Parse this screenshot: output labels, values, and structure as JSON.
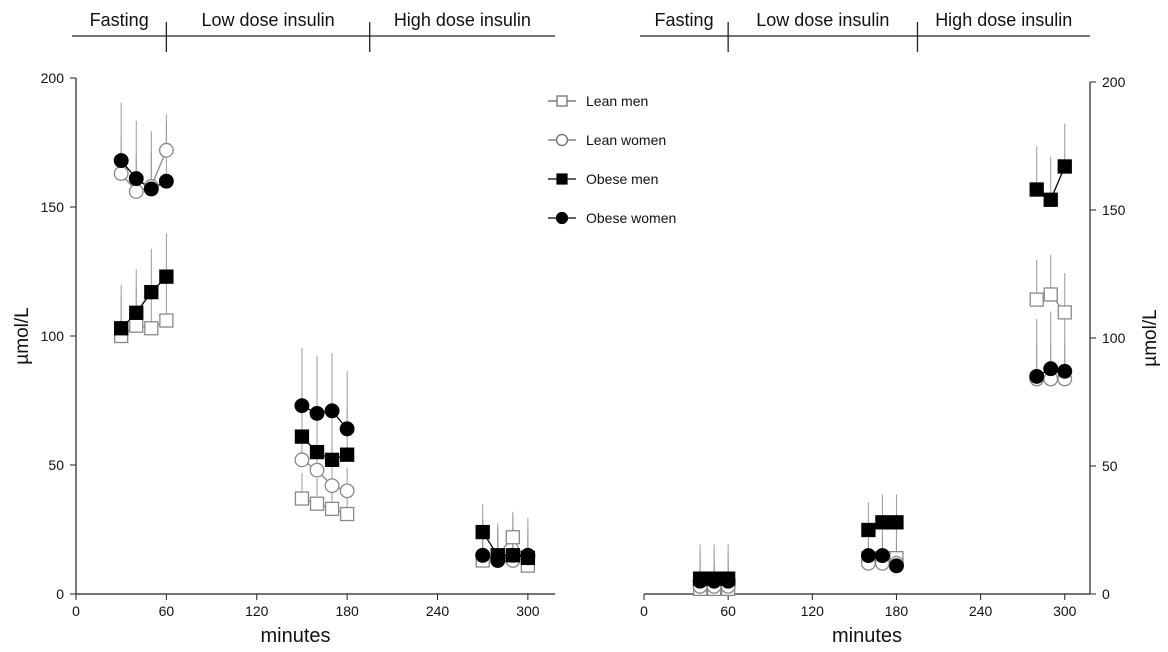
{
  "chart_data": [
    {
      "type": "scatter",
      "panel": "left",
      "phases": [
        "Fasting",
        "Low dose insulin",
        "High dose insulin"
      ],
      "xlabel": "minutes",
      "ylabel": "µmol/L",
      "xticks": [
        0,
        60,
        120,
        180,
        240,
        300
      ],
      "yticks": [
        0,
        50,
        100,
        150,
        200
      ],
      "xlim": [
        0,
        318
      ],
      "ylim": [
        0,
        200
      ],
      "legend": {
        "position": "top-right"
      },
      "series": [
        {
          "name": "Lean men",
          "marker": "open-square",
          "segments": [
            [
              [
                30,
                100
              ],
              [
                40,
                104
              ],
              [
                50,
                103
              ],
              [
                60,
                106
              ]
            ],
            [
              [
                150,
                37
              ],
              [
                160,
                35
              ],
              [
                170,
                33
              ],
              [
                180,
                31
              ]
            ],
            [
              [
                270,
                13
              ],
              [
                280,
                15
              ],
              [
                290,
                22
              ],
              [
                300,
                11
              ]
            ]
          ]
        },
        {
          "name": "Lean women",
          "marker": "open-circle",
          "segments": [
            [
              [
                30,
                163
              ],
              [
                40,
                156
              ],
              [
                50,
                158
              ],
              [
                60,
                172
              ]
            ],
            [
              [
                150,
                52
              ],
              [
                160,
                48
              ],
              [
                170,
                42
              ],
              [
                180,
                40
              ]
            ],
            [
              [
                270,
                15
              ],
              [
                280,
                13
              ],
              [
                290,
                13
              ],
              [
                300,
                14
              ]
            ]
          ]
        },
        {
          "name": "Obese men",
          "marker": "filled-square",
          "segments": [
            [
              [
                30,
                103
              ],
              [
                40,
                109
              ],
              [
                50,
                117
              ],
              [
                60,
                123
              ]
            ],
            [
              [
                150,
                61
              ],
              [
                160,
                55
              ],
              [
                170,
                52
              ],
              [
                180,
                54
              ]
            ],
            [
              [
                270,
                24
              ],
              [
                280,
                15
              ],
              [
                290,
                15
              ],
              [
                300,
                14
              ]
            ]
          ]
        },
        {
          "name": "Obese women",
          "marker": "filled-circle",
          "segments": [
            [
              [
                30,
                168
              ],
              [
                40,
                161
              ],
              [
                50,
                157
              ],
              [
                60,
                160
              ]
            ],
            [
              [
                150,
                73
              ],
              [
                160,
                70
              ],
              [
                170,
                71
              ],
              [
                180,
                64
              ]
            ],
            [
              [
                270,
                15
              ],
              [
                280,
                13
              ],
              [
                290,
                15
              ],
              [
                300,
                15
              ]
            ]
          ]
        }
      ]
    },
    {
      "type": "scatter",
      "panel": "right",
      "phases": [
        "Fasting",
        "Low dose insulin",
        "High dose insulin"
      ],
      "xlabel": "minutes",
      "ylabel": "µmol/L",
      "xticks": [
        0,
        60,
        120,
        180,
        240,
        300
      ],
      "yticks": [
        0,
        50,
        100,
        150,
        200
      ],
      "xlim": [
        0,
        318
      ],
      "ylim": [
        0,
        200
      ],
      "series": [
        {
          "name": "Lean men",
          "marker": "open-square",
          "segments": [
            [
              [
                40,
                2
              ],
              [
                50,
                2
              ],
              [
                60,
                2
              ]
            ],
            [
              [
                160,
                14
              ],
              [
                170,
                14
              ],
              [
                180,
                14
              ]
            ],
            [
              [
                280,
                115
              ],
              [
                290,
                117
              ],
              [
                300,
                110
              ]
            ]
          ]
        },
        {
          "name": "Lean women",
          "marker": "open-circle",
          "segments": [
            [
              [
                40,
                3
              ],
              [
                50,
                3
              ],
              [
                60,
                3
              ]
            ],
            [
              [
                160,
                12
              ],
              [
                170,
                12
              ],
              [
                180,
                12
              ]
            ],
            [
              [
                280,
                84
              ],
              [
                290,
                84
              ],
              [
                300,
                84
              ]
            ]
          ]
        },
        {
          "name": "Obese men",
          "marker": "filled-square",
          "segments": [
            [
              [
                40,
                6
              ],
              [
                50,
                6
              ],
              [
                60,
                6
              ]
            ],
            [
              [
                160,
                25
              ],
              [
                170,
                28
              ],
              [
                180,
                28
              ]
            ],
            [
              [
                280,
                158
              ],
              [
                290,
                154
              ],
              [
                300,
                167
              ]
            ]
          ]
        },
        {
          "name": "Obese women",
          "marker": "filled-circle",
          "segments": [
            [
              [
                40,
                5
              ],
              [
                50,
                5
              ],
              [
                60,
                5
              ]
            ],
            [
              [
                160,
                15
              ],
              [
                170,
                15
              ],
              [
                180,
                11
              ]
            ],
            [
              [
                280,
                85
              ],
              [
                290,
                88
              ],
              [
                300,
                87
              ]
            ]
          ]
        }
      ]
    }
  ]
}
